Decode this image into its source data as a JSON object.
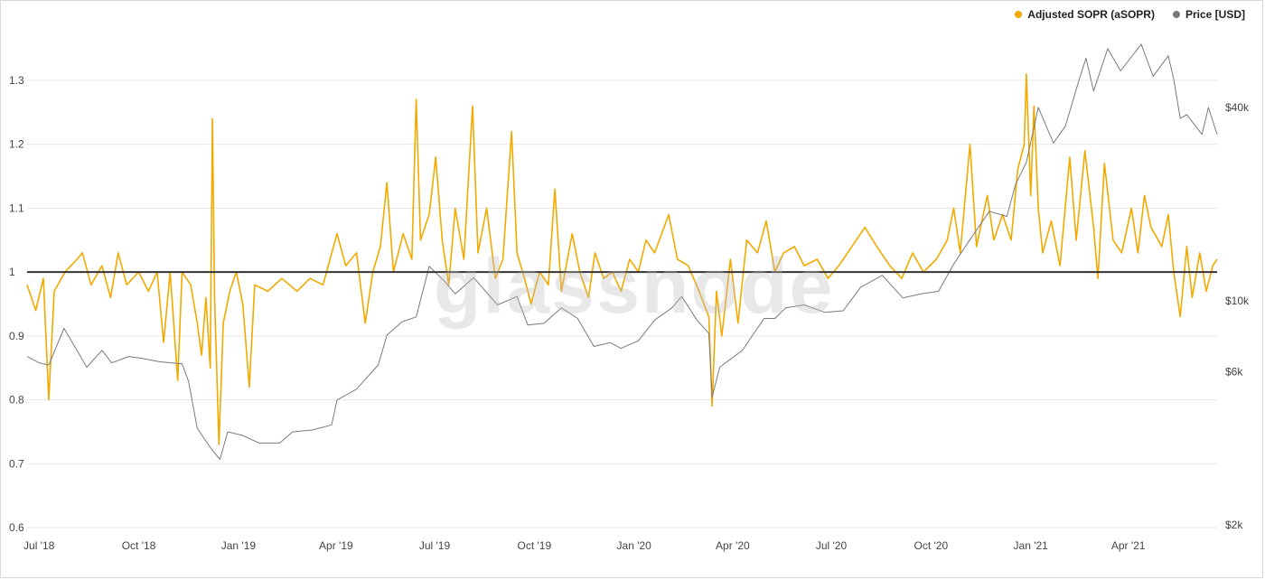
{
  "legend": {
    "asopr": "Adjusted SOPR (aSOPR)",
    "price": "Price [USD]"
  },
  "watermark": "glassnode",
  "colors": {
    "asopr": "#f2a900",
    "price": "#7a7a7a",
    "baseline": "#333333",
    "grid": "#e6e6e6"
  },
  "chart_data": {
    "type": "line",
    "left_axis": {
      "ticks": [
        0.6,
        0.7,
        0.8,
        0.9,
        1,
        1.1,
        1.2,
        1.3
      ],
      "labels": [
        "0.6",
        "0.7",
        "0.8",
        "0.9",
        "1",
        "1.1",
        "1.2",
        "1.3"
      ],
      "ylim": [
        0.6,
        1.33
      ]
    },
    "right_axis": {
      "scale": "log",
      "ticks": [
        2000,
        6000,
        10000,
        40000
      ],
      "labels": [
        "$2k",
        "$6k",
        "$10k",
        "$40k"
      ]
    },
    "x_axis": {
      "range": [
        "2018-06-20",
        "2021-06-22"
      ],
      "ticks": [
        "2018-07-01",
        "2018-10-01",
        "2019-01-01",
        "2019-04-01",
        "2019-07-01",
        "2019-10-01",
        "2020-01-01",
        "2020-04-01",
        "2020-07-01",
        "2020-10-01",
        "2021-01-01",
        "2021-04-01"
      ],
      "labels": [
        "Jul '18",
        "Oct '18",
        "Jan '19",
        "Apr '19",
        "Jul '19",
        "Oct '19",
        "Jan '20",
        "Apr '20",
        "Jul '20",
        "Oct '20",
        "Jan '21",
        "Apr '21"
      ]
    },
    "reference_line": 1,
    "series": [
      {
        "name": "Adjusted SOPR (aSOPR)",
        "axis": "left",
        "points": [
          [
            "2018-06-20",
            0.98
          ],
          [
            "2018-06-28",
            0.94
          ],
          [
            "2018-07-05",
            0.99
          ],
          [
            "2018-07-10",
            0.8
          ],
          [
            "2018-07-15",
            0.97
          ],
          [
            "2018-07-25",
            1.0
          ],
          [
            "2018-08-05",
            1.02
          ],
          [
            "2018-08-10",
            1.03
          ],
          [
            "2018-08-18",
            0.98
          ],
          [
            "2018-08-28",
            1.01
          ],
          [
            "2018-09-05",
            0.96
          ],
          [
            "2018-09-12",
            1.03
          ],
          [
            "2018-09-20",
            0.98
          ],
          [
            "2018-10-01",
            1.0
          ],
          [
            "2018-10-10",
            0.97
          ],
          [
            "2018-10-18",
            1.0
          ],
          [
            "2018-10-24",
            0.89
          ],
          [
            "2018-10-30",
            1.0
          ],
          [
            "2018-11-06",
            0.83
          ],
          [
            "2018-11-10",
            1.0
          ],
          [
            "2018-11-18",
            0.98
          ],
          [
            "2018-11-24",
            0.92
          ],
          [
            "2018-11-28",
            0.87
          ],
          [
            "2018-12-02",
            0.96
          ],
          [
            "2018-12-06",
            0.85
          ],
          [
            "2018-12-08",
            1.24
          ],
          [
            "2018-12-10",
            0.96
          ],
          [
            "2018-12-14",
            0.73
          ],
          [
            "2018-12-18",
            0.92
          ],
          [
            "2018-12-24",
            0.97
          ],
          [
            "2018-12-30",
            1.0
          ],
          [
            "2019-01-05",
            0.95
          ],
          [
            "2019-01-11",
            0.82
          ],
          [
            "2019-01-16",
            0.98
          ],
          [
            "2019-01-28",
            0.97
          ],
          [
            "2019-02-10",
            0.99
          ],
          [
            "2019-02-24",
            0.97
          ],
          [
            "2019-03-08",
            0.99
          ],
          [
            "2019-03-20",
            0.98
          ],
          [
            "2019-04-02",
            1.06
          ],
          [
            "2019-04-10",
            1.01
          ],
          [
            "2019-04-20",
            1.03
          ],
          [
            "2019-04-28",
            0.92
          ],
          [
            "2019-05-05",
            1.0
          ],
          [
            "2019-05-12",
            1.04
          ],
          [
            "2019-05-18",
            1.14
          ],
          [
            "2019-05-24",
            1.0
          ],
          [
            "2019-06-02",
            1.06
          ],
          [
            "2019-06-10",
            1.02
          ],
          [
            "2019-06-14",
            1.27
          ],
          [
            "2019-06-18",
            1.05
          ],
          [
            "2019-06-26",
            1.09
          ],
          [
            "2019-07-02",
            1.18
          ],
          [
            "2019-07-08",
            1.05
          ],
          [
            "2019-07-14",
            0.98
          ],
          [
            "2019-07-20",
            1.1
          ],
          [
            "2019-07-28",
            1.02
          ],
          [
            "2019-08-05",
            1.26
          ],
          [
            "2019-08-10",
            1.03
          ],
          [
            "2019-08-18",
            1.1
          ],
          [
            "2019-08-26",
            0.99
          ],
          [
            "2019-09-02",
            1.02
          ],
          [
            "2019-09-10",
            1.22
          ],
          [
            "2019-09-15",
            1.03
          ],
          [
            "2019-09-22",
            0.99
          ],
          [
            "2019-09-28",
            0.95
          ],
          [
            "2019-10-06",
            1.0
          ],
          [
            "2019-10-14",
            0.98
          ],
          [
            "2019-10-20",
            1.13
          ],
          [
            "2019-10-26",
            0.97
          ],
          [
            "2019-11-05",
            1.06
          ],
          [
            "2019-11-12",
            1.0
          ],
          [
            "2019-11-20",
            0.96
          ],
          [
            "2019-11-26",
            1.03
          ],
          [
            "2019-12-04",
            0.99
          ],
          [
            "2019-12-12",
            1.0
          ],
          [
            "2019-12-20",
            0.97
          ],
          [
            "2019-12-28",
            1.02
          ],
          [
            "2020-01-05",
            1.0
          ],
          [
            "2020-01-12",
            1.05
          ],
          [
            "2020-01-20",
            1.03
          ],
          [
            "2020-02-02",
            1.09
          ],
          [
            "2020-02-10",
            1.02
          ],
          [
            "2020-02-20",
            1.01
          ],
          [
            "2020-03-01",
            0.97
          ],
          [
            "2020-03-10",
            0.93
          ],
          [
            "2020-03-13",
            0.79
          ],
          [
            "2020-03-17",
            0.97
          ],
          [
            "2020-03-22",
            0.9
          ],
          [
            "2020-03-30",
            1.02
          ],
          [
            "2020-04-06",
            0.92
          ],
          [
            "2020-04-14",
            1.05
          ],
          [
            "2020-04-24",
            1.03
          ],
          [
            "2020-05-02",
            1.08
          ],
          [
            "2020-05-10",
            1.0
          ],
          [
            "2020-05-18",
            1.03
          ],
          [
            "2020-05-28",
            1.04
          ],
          [
            "2020-06-06",
            1.01
          ],
          [
            "2020-06-18",
            1.02
          ],
          [
            "2020-06-28",
            0.99
          ],
          [
            "2020-07-08",
            1.01
          ],
          [
            "2020-07-20",
            1.04
          ],
          [
            "2020-08-01",
            1.07
          ],
          [
            "2020-08-12",
            1.04
          ],
          [
            "2020-08-24",
            1.01
          ],
          [
            "2020-09-04",
            0.99
          ],
          [
            "2020-09-14",
            1.03
          ],
          [
            "2020-09-24",
            1.0
          ],
          [
            "2020-10-06",
            1.02
          ],
          [
            "2020-10-16",
            1.05
          ],
          [
            "2020-10-22",
            1.1
          ],
          [
            "2020-10-28",
            1.03
          ],
          [
            "2020-11-06",
            1.2
          ],
          [
            "2020-11-12",
            1.04
          ],
          [
            "2020-11-22",
            1.12
          ],
          [
            "2020-11-28",
            1.05
          ],
          [
            "2020-12-06",
            1.09
          ],
          [
            "2020-12-14",
            1.05
          ],
          [
            "2020-12-20",
            1.16
          ],
          [
            "2020-12-26",
            1.2
          ],
          [
            "2020-12-28",
            1.31
          ],
          [
            "2021-01-01",
            1.12
          ],
          [
            "2021-01-04",
            1.26
          ],
          [
            "2021-01-08",
            1.1
          ],
          [
            "2021-01-12",
            1.03
          ],
          [
            "2021-01-20",
            1.08
          ],
          [
            "2021-01-28",
            1.01
          ],
          [
            "2021-02-06",
            1.18
          ],
          [
            "2021-02-12",
            1.05
          ],
          [
            "2021-02-20",
            1.19
          ],
          [
            "2021-02-28",
            1.07
          ],
          [
            "2021-03-04",
            0.99
          ],
          [
            "2021-03-10",
            1.17
          ],
          [
            "2021-03-18",
            1.05
          ],
          [
            "2021-03-26",
            1.03
          ],
          [
            "2021-04-04",
            1.1
          ],
          [
            "2021-04-10",
            1.03
          ],
          [
            "2021-04-16",
            1.12
          ],
          [
            "2021-04-22",
            1.07
          ],
          [
            "2021-05-02",
            1.04
          ],
          [
            "2021-05-08",
            1.09
          ],
          [
            "2021-05-13",
            1.0
          ],
          [
            "2021-05-19",
            0.93
          ],
          [
            "2021-05-25",
            1.04
          ],
          [
            "2021-05-30",
            0.96
          ],
          [
            "2021-06-06",
            1.03
          ],
          [
            "2021-06-12",
            0.97
          ],
          [
            "2021-06-18",
            1.01
          ],
          [
            "2021-06-22",
            1.02
          ]
        ]
      },
      {
        "name": "Price [USD]",
        "axis": "right",
        "points": [
          [
            "2018-06-20",
            6700
          ],
          [
            "2018-07-01",
            6400
          ],
          [
            "2018-07-10",
            6300
          ],
          [
            "2018-07-24",
            8200
          ],
          [
            "2018-08-05",
            7000
          ],
          [
            "2018-08-14",
            6200
          ],
          [
            "2018-08-28",
            7000
          ],
          [
            "2018-09-06",
            6400
          ],
          [
            "2018-09-22",
            6700
          ],
          [
            "2018-10-05",
            6600
          ],
          [
            "2018-10-20",
            6450
          ],
          [
            "2018-11-10",
            6350
          ],
          [
            "2018-11-16",
            5600
          ],
          [
            "2018-11-24",
            4000
          ],
          [
            "2018-12-07",
            3450
          ],
          [
            "2018-12-15",
            3200
          ],
          [
            "2018-12-22",
            3900
          ],
          [
            "2019-01-05",
            3800
          ],
          [
            "2019-01-20",
            3600
          ],
          [
            "2019-02-08",
            3600
          ],
          [
            "2019-02-20",
            3900
          ],
          [
            "2019-03-10",
            3950
          ],
          [
            "2019-03-28",
            4100
          ],
          [
            "2019-04-02",
            4900
          ],
          [
            "2019-04-20",
            5300
          ],
          [
            "2019-05-10",
            6300
          ],
          [
            "2019-05-18",
            7800
          ],
          [
            "2019-06-01",
            8600
          ],
          [
            "2019-06-14",
            8900
          ],
          [
            "2019-06-26",
            12800
          ],
          [
            "2019-07-10",
            11500
          ],
          [
            "2019-07-20",
            10500
          ],
          [
            "2019-08-06",
            11800
          ],
          [
            "2019-08-28",
            9700
          ],
          [
            "2019-09-15",
            10300
          ],
          [
            "2019-09-25",
            8400
          ],
          [
            "2019-10-10",
            8500
          ],
          [
            "2019-10-26",
            9500
          ],
          [
            "2019-11-10",
            8800
          ],
          [
            "2019-11-25",
            7200
          ],
          [
            "2019-12-10",
            7400
          ],
          [
            "2019-12-20",
            7100
          ],
          [
            "2020-01-05",
            7500
          ],
          [
            "2020-01-20",
            8700
          ],
          [
            "2020-02-05",
            9500
          ],
          [
            "2020-02-14",
            10300
          ],
          [
            "2020-02-28",
            8700
          ],
          [
            "2020-03-10",
            7900
          ],
          [
            "2020-03-13",
            5000
          ],
          [
            "2020-03-20",
            6200
          ],
          [
            "2020-04-10",
            7000
          ],
          [
            "2020-04-30",
            8800
          ],
          [
            "2020-05-10",
            8800
          ],
          [
            "2020-05-20",
            9500
          ],
          [
            "2020-06-06",
            9700
          ],
          [
            "2020-06-25",
            9200
          ],
          [
            "2020-07-12",
            9300
          ],
          [
            "2020-07-28",
            11000
          ],
          [
            "2020-08-17",
            12000
          ],
          [
            "2020-09-05",
            10200
          ],
          [
            "2020-09-22",
            10500
          ],
          [
            "2020-10-08",
            10700
          ],
          [
            "2020-10-22",
            13000
          ],
          [
            "2020-11-06",
            15500
          ],
          [
            "2020-11-24",
            19000
          ],
          [
            "2020-12-10",
            18300
          ],
          [
            "2020-12-18",
            23000
          ],
          [
            "2020-12-28",
            27000
          ],
          [
            "2021-01-08",
            40000
          ],
          [
            "2021-01-22",
            31000
          ],
          [
            "2021-02-02",
            35000
          ],
          [
            "2021-02-14",
            48000
          ],
          [
            "2021-02-21",
            57000
          ],
          [
            "2021-02-28",
            45000
          ],
          [
            "2021-03-13",
            61000
          ],
          [
            "2021-03-25",
            52000
          ],
          [
            "2021-04-13",
            63000
          ],
          [
            "2021-04-24",
            50000
          ],
          [
            "2021-05-08",
            58000
          ],
          [
            "2021-05-13",
            49000
          ],
          [
            "2021-05-19",
            37000
          ],
          [
            "2021-05-25",
            38000
          ],
          [
            "2021-06-08",
            33000
          ],
          [
            "2021-06-14",
            40000
          ],
          [
            "2021-06-22",
            33000
          ]
        ]
      }
    ]
  }
}
